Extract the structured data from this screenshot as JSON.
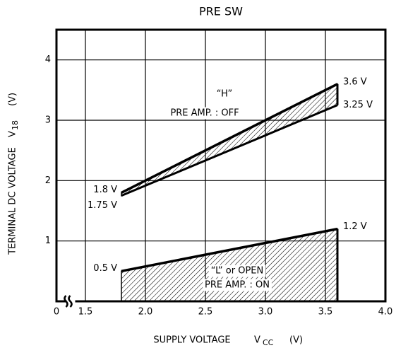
{
  "chart_data": {
    "type": "band",
    "title": "PRE SW",
    "xlabel": [
      "SUPPLY VOLTAGE",
      "V",
      "CC",
      "(V)"
    ],
    "ylabel": [
      "TERMINAL DC VOLTAGE",
      "V",
      "18",
      "(V)"
    ],
    "xlim": [
      0,
      4.0
    ],
    "x_break": [
      0,
      1.5
    ],
    "xticks": [
      0,
      1.5,
      {
        "value": 2.0,
        "label": "2.0"
      },
      2.5,
      {
        "value": 3.0,
        "label": "3.0"
      },
      3.5,
      {
        "value": 4.0,
        "label": "4.0"
      }
    ],
    "ylim": [
      0,
      4.5
    ],
    "yticks": [
      1,
      2,
      3,
      4
    ],
    "grid": true,
    "series": [
      {
        "x": [
          1.8,
          3.6
        ],
        "upper": [
          1.8,
          3.6
        ],
        "lower": [
          1.75,
          3.25
        ],
        "upper_labels": [
          "1.8 V",
          "3.6 V"
        ],
        "lower_labels": [
          "1.75 V",
          "3.25 V"
        ],
        "annotation": [
          "“H”",
          "PRE AMP. : OFF"
        ]
      },
      {
        "x": [
          1.8,
          3.6
        ],
        "upper": [
          0.5,
          1.2
        ],
        "lower": [
          0,
          0
        ],
        "upper_labels": [
          "0.5 V",
          "1.2 V"
        ],
        "annotation": [
          "“L” or OPEN",
          "PRE AMP. : ON"
        ]
      }
    ]
  }
}
